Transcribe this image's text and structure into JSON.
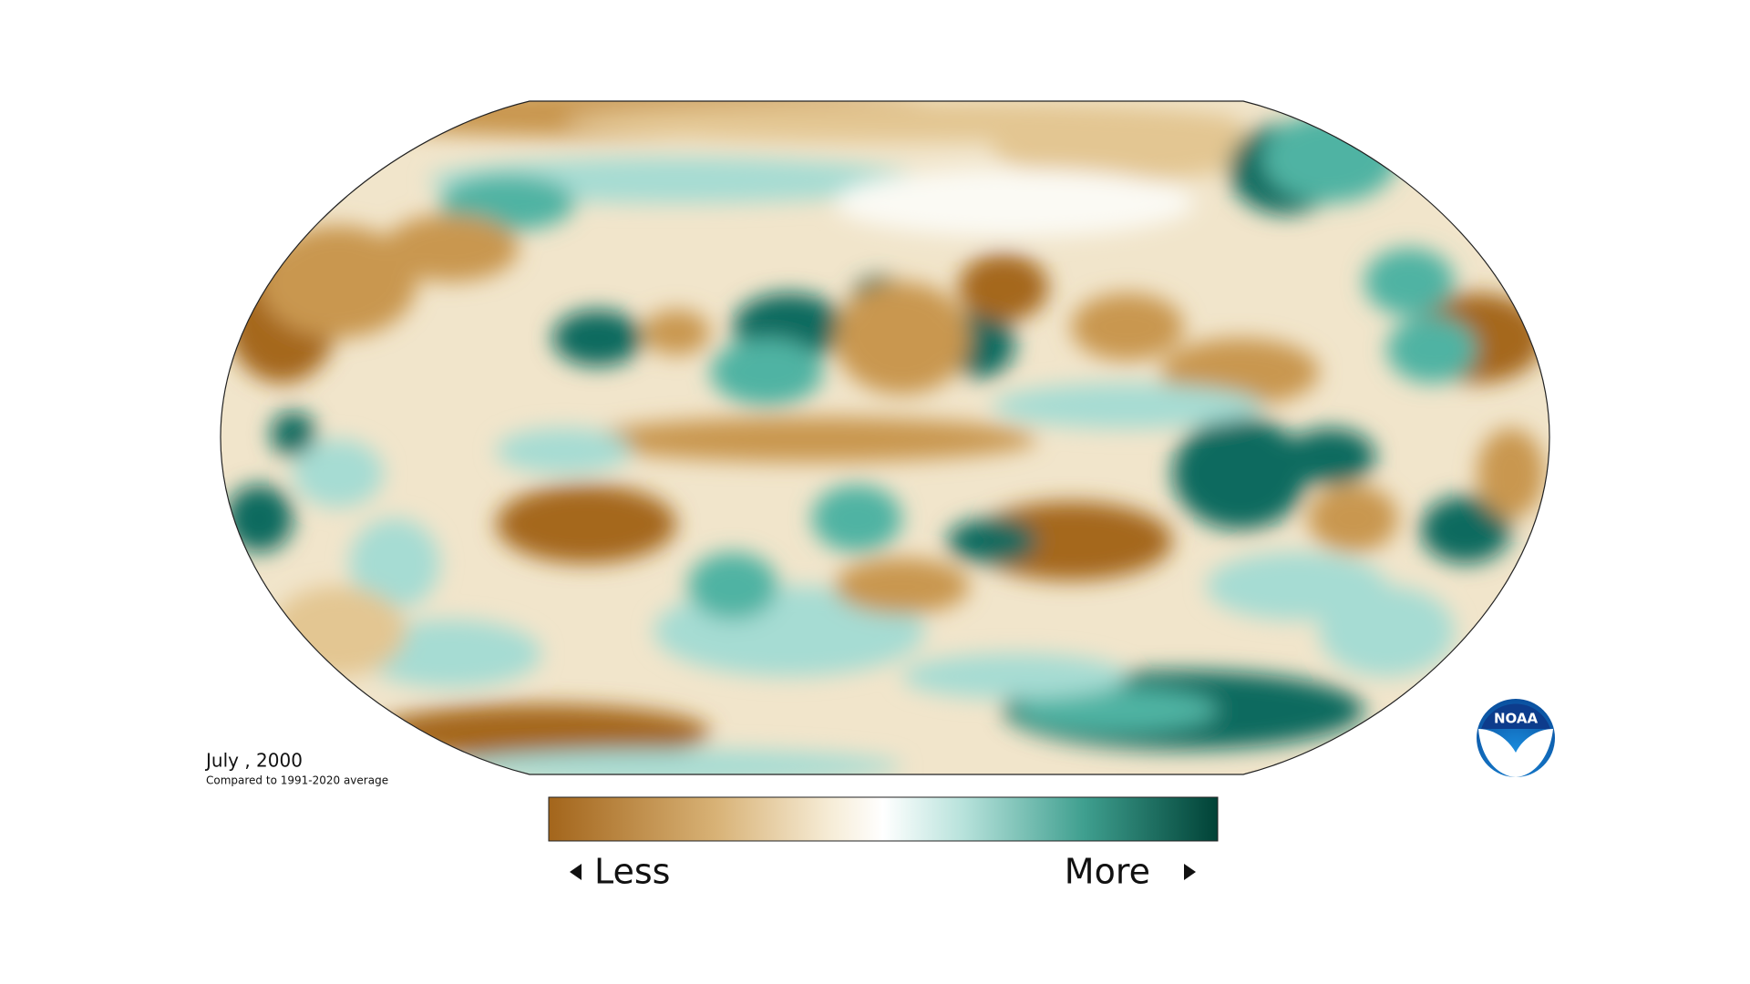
{
  "map": {
    "date": "July , 2000",
    "subtitle": "Compared to 1991-2020 average",
    "legend": {
      "low_label": "Less",
      "high_label": "More"
    }
  },
  "logo": {
    "text": "NOAA"
  }
}
